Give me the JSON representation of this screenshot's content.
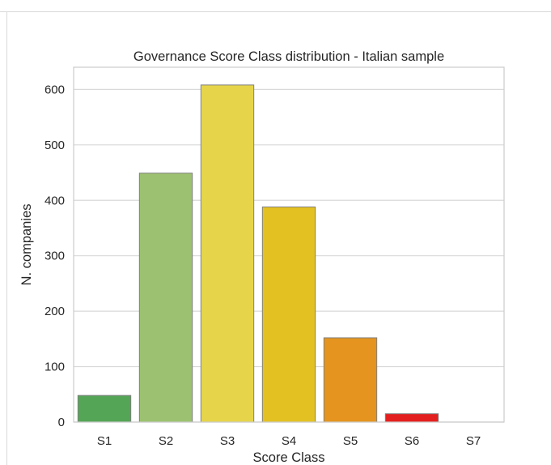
{
  "chart_data": {
    "type": "bar",
    "title": "Governance  Score Class distribution - Italian sample",
    "xlabel": "Score Class",
    "ylabel": "N. companies",
    "categories": [
      "S1",
      "S2",
      "S3",
      "S4",
      "S5",
      "S6",
      "S7"
    ],
    "values": [
      48,
      449,
      608,
      388,
      152,
      15,
      0
    ],
    "colors": [
      "#55a556",
      "#9cc170",
      "#e6d54a",
      "#e3c122",
      "#e4941f",
      "#e3201f",
      "#d8d8d8"
    ],
    "ylim": [
      0,
      640
    ],
    "yticks": [
      0,
      100,
      200,
      300,
      400,
      500,
      600
    ],
    "grid": true,
    "legend": "none"
  }
}
